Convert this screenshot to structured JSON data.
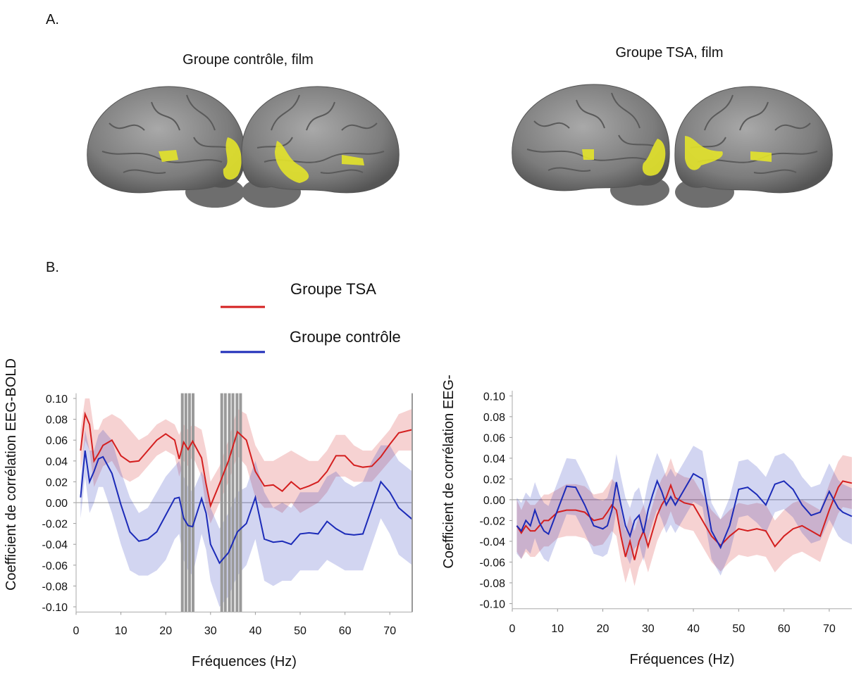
{
  "panel_a": {
    "label": "A.",
    "titles": [
      "Groupe contrôle, film",
      "Groupe TSA, film"
    ]
  },
  "panel_b": {
    "label": "B."
  },
  "chart_data": [
    {
      "type": "line",
      "xlabel": "Fréquences (Hz)",
      "ylabel": "Coefficient de corrélation EEG-BOLD",
      "frame": "box",
      "xlim": [
        0,
        75
      ],
      "xticks": [
        0,
        10,
        20,
        30,
        40,
        50,
        60,
        70
      ],
      "ylim": [
        -0.105,
        0.105
      ],
      "yticks": [
        {
          "value": 0.1,
          "label": "0.10"
        },
        0.08,
        0.06,
        0.04,
        0.02,
        {
          "value": 0,
          "label": "0.00"
        },
        -0.02,
        -0.04,
        -0.06,
        -0.08,
        {
          "value": -0.1,
          "label": "-0.10"
        }
      ],
      "reference_line": 0,
      "significant_x": [
        23.7,
        24.5,
        25.3,
        26.1,
        32.5,
        33.3,
        34.2,
        35,
        35.9,
        36.7
      ],
      "x": [
        1,
        2,
        3,
        4,
        5,
        6,
        8,
        10,
        12,
        14,
        16,
        18,
        20,
        22,
        23,
        24,
        25,
        26,
        28,
        29,
        30,
        32,
        34,
        36,
        38,
        40,
        42,
        44,
        46,
        48,
        50,
        52,
        54,
        56,
        58,
        60,
        62,
        64,
        66,
        68,
        70,
        72,
        75
      ],
      "series": [
        {
          "name": "Groupe TSA",
          "color": "#d41f1f",
          "values": [
            0.05,
            0.085,
            0.075,
            0.04,
            0.047,
            0.055,
            0.06,
            0.045,
            0.039,
            0.04,
            0.05,
            0.06,
            0.066,
            0.06,
            0.042,
            0.058,
            0.051,
            0.059,
            0.043,
            0.018,
            -0.003,
            0.018,
            0.04,
            0.068,
            0.06,
            0.03,
            0.016,
            0.017,
            0.011,
            0.02,
            0.013,
            0.016,
            0.02,
            0.03,
            0.045,
            0.045,
            0.036,
            0.034,
            0.035,
            0.044,
            0.056,
            0.067,
            0.07
          ],
          "upper": [
            0.07,
            0.1,
            0.1,
            0.07,
            0.07,
            0.08,
            0.085,
            0.08,
            0.07,
            0.06,
            0.065,
            0.075,
            0.08,
            0.075,
            0.065,
            0.075,
            0.07,
            0.075,
            0.07,
            0.05,
            0.02,
            0.035,
            0.06,
            0.09,
            0.085,
            0.055,
            0.04,
            0.04,
            0.045,
            0.05,
            0.045,
            0.04,
            0.04,
            0.05,
            0.065,
            0.065,
            0.055,
            0.05,
            0.05,
            0.06,
            0.07,
            0.085,
            0.09
          ],
          "lower": [
            0.03,
            0.06,
            0.05,
            0.015,
            0.025,
            0.035,
            0.04,
            0.025,
            0.02,
            0.025,
            0.035,
            0.045,
            0.05,
            0.045,
            0.025,
            0.04,
            0.035,
            0.045,
            0.025,
            -0.005,
            -0.02,
            0,
            0.02,
            0.045,
            0.035,
            0.005,
            -0.005,
            -0.005,
            -0.01,
            0,
            -0.01,
            -0.005,
            0,
            0.01,
            0.025,
            0.025,
            0.02,
            0.02,
            0.02,
            0.03,
            0.04,
            0.05,
            0.05
          ]
        },
        {
          "name": "Groupe contrôle",
          "color": "#1c2bb8",
          "values": [
            0.005,
            0.05,
            0.02,
            0.03,
            0.042,
            0.044,
            0.028,
            -0.002,
            -0.028,
            -0.037,
            -0.035,
            -0.028,
            -0.012,
            0.004,
            0.005,
            -0.015,
            -0.022,
            -0.023,
            0.004,
            -0.01,
            -0.04,
            -0.058,
            -0.048,
            -0.028,
            -0.02,
            0.005,
            -0.035,
            -0.038,
            -0.037,
            -0.04,
            -0.03,
            -0.029,
            -0.03,
            -0.018,
            -0.025,
            -0.03,
            -0.031,
            -0.03,
            -0.005,
            0.02,
            0.01,
            -0.005,
            -0.016
          ],
          "upper": [
            0.02,
            0.07,
            0.05,
            0.05,
            0.065,
            0.07,
            0.06,
            0.03,
            0.005,
            -0.01,
            -0.005,
            0.01,
            0.025,
            0.035,
            0.04,
            0.025,
            0.015,
            0.01,
            0.03,
            0.02,
            -0.005,
            -0.025,
            -0.01,
            0.01,
            0.015,
            0.04,
            0.01,
            -0.005,
            0,
            -0.005,
            0.01,
            0.01,
            0.01,
            0.025,
            0.03,
            0.02,
            0.015,
            0.02,
            0.04,
            0.055,
            0.055,
            0.04,
            0.03
          ],
          "lower": [
            -0.015,
            0.025,
            -0.01,
            0,
            0.015,
            0.015,
            -0.01,
            -0.04,
            -0.065,
            -0.07,
            -0.07,
            -0.065,
            -0.055,
            -0.035,
            -0.03,
            -0.055,
            -0.065,
            -0.07,
            -0.03,
            -0.045,
            -0.075,
            -0.1,
            -0.09,
            -0.07,
            -0.06,
            -0.035,
            -0.075,
            -0.08,
            -0.075,
            -0.075,
            -0.065,
            -0.065,
            -0.065,
            -0.055,
            -0.06,
            -0.065,
            -0.065,
            -0.065,
            -0.04,
            -0.015,
            -0.03,
            -0.05,
            -0.06
          ]
        }
      ]
    },
    {
      "type": "line",
      "xlabel": "Fréquences (Hz)",
      "ylabel": "Coefficient de corrélation EEG-",
      "frame": "open",
      "xlim": [
        0,
        75
      ],
      "xticks": [
        0,
        10,
        20,
        30,
        40,
        50,
        60,
        70
      ],
      "ylim": [
        -0.105,
        0.105
      ],
      "yticks": [
        {
          "value": 0.1,
          "label": "0.10"
        },
        0.08,
        0.06,
        0.04,
        0.02,
        {
          "value": 0,
          "label": "0.00"
        },
        -0.02,
        -0.04,
        -0.06,
        -0.08,
        {
          "value": -0.1,
          "label": "-0.10"
        }
      ],
      "reference_line": 0,
      "x": [
        1,
        2,
        3,
        4,
        5,
        6,
        7,
        8,
        10,
        12,
        14,
        16,
        18,
        20,
        21,
        22,
        23,
        24,
        25,
        26,
        27,
        28,
        29,
        30,
        31,
        32,
        33,
        34,
        35,
        36,
        38,
        40,
        42,
        44,
        46,
        48,
        50,
        52,
        54,
        56,
        58,
        60,
        62,
        64,
        66,
        68,
        70,
        72,
        73,
        75
      ],
      "series": [
        {
          "color": "#d41f1f",
          "values": [
            -0.025,
            -0.032,
            -0.025,
            -0.03,
            -0.03,
            -0.025,
            -0.02,
            -0.02,
            -0.012,
            -0.01,
            -0.01,
            -0.012,
            -0.02,
            -0.018,
            -0.012,
            -0.005,
            -0.01,
            -0.035,
            -0.055,
            -0.04,
            -0.058,
            -0.04,
            -0.03,
            -0.045,
            -0.03,
            -0.015,
            -0.005,
            0.002,
            0.014,
            0.002,
            -0.003,
            -0.005,
            -0.02,
            -0.035,
            -0.044,
            -0.035,
            -0.028,
            -0.03,
            -0.028,
            -0.03,
            -0.045,
            -0.035,
            -0.028,
            -0.025,
            -0.03,
            -0.035,
            -0.01,
            0.012,
            0.018,
            0.016
          ],
          "upper": [
            0,
            -0.01,
            0,
            -0.005,
            -0.005,
            0,
            0.005,
            0.005,
            0.01,
            0.015,
            0.015,
            0.013,
            0.005,
            0.007,
            0.013,
            0.02,
            0.015,
            -0.01,
            -0.03,
            -0.015,
            -0.03,
            -0.015,
            -0.005,
            -0.02,
            -0.005,
            0.01,
            0.02,
            0.027,
            0.04,
            0.027,
            0.022,
            0.02,
            0.005,
            -0.01,
            -0.019,
            -0.01,
            -0.003,
            -0.005,
            -0.003,
            -0.005,
            -0.02,
            -0.01,
            -0.003,
            0,
            -0.005,
            -0.01,
            0.015,
            0.037,
            0.043,
            0.041
          ],
          "lower": [
            -0.05,
            -0.057,
            -0.05,
            -0.055,
            -0.055,
            -0.05,
            -0.045,
            -0.045,
            -0.037,
            -0.035,
            -0.035,
            -0.037,
            -0.045,
            -0.043,
            -0.037,
            -0.03,
            -0.035,
            -0.06,
            -0.08,
            -0.065,
            -0.083,
            -0.065,
            -0.055,
            -0.07,
            -0.055,
            -0.04,
            -0.03,
            -0.023,
            -0.011,
            -0.023,
            -0.028,
            -0.03,
            -0.045,
            -0.06,
            -0.069,
            -0.06,
            -0.053,
            -0.055,
            -0.053,
            -0.055,
            -0.07,
            -0.06,
            -0.053,
            -0.05,
            -0.055,
            -0.06,
            -0.035,
            -0.013,
            -0.007,
            -0.009
          ]
        },
        {
          "color": "#1c2bb8",
          "values": [
            -0.025,
            -0.03,
            -0.02,
            -0.025,
            -0.01,
            -0.022,
            -0.03,
            -0.033,
            -0.01,
            0.013,
            0.012,
            -0.005,
            -0.025,
            -0.028,
            -0.025,
            -0.01,
            0.017,
            -0.005,
            -0.025,
            -0.035,
            -0.02,
            -0.015,
            -0.032,
            -0.01,
            0.005,
            0.018,
            0.008,
            -0.005,
            0.003,
            -0.005,
            0.01,
            0.025,
            0.02,
            -0.03,
            -0.046,
            -0.025,
            0.01,
            0.012,
            0.005,
            -0.005,
            0.015,
            0.018,
            0.01,
            -0.005,
            -0.015,
            -0.012,
            0.008,
            -0.008,
            -0.012,
            -0.016
          ],
          "upper": [
            0.002,
            -0.003,
            0.007,
            0.002,
            0.017,
            0.005,
            -0.003,
            -0.006,
            0.017,
            0.04,
            0.039,
            0.022,
            0.002,
            -0.001,
            0.002,
            0.017,
            0.044,
            0.022,
            0.002,
            -0.008,
            0.007,
            0.012,
            -0.005,
            0.017,
            0.032,
            0.045,
            0.035,
            0.022,
            0.03,
            0.022,
            0.037,
            0.052,
            0.047,
            -0.003,
            -0.019,
            0.002,
            0.037,
            0.039,
            0.032,
            0.022,
            0.042,
            0.045,
            0.037,
            0.022,
            0.012,
            0.015,
            0.035,
            0.019,
            0.015,
            0.011
          ],
          "lower": [
            -0.052,
            -0.057,
            -0.047,
            -0.052,
            -0.037,
            -0.049,
            -0.057,
            -0.06,
            -0.037,
            -0.014,
            -0.015,
            -0.032,
            -0.052,
            -0.055,
            -0.052,
            -0.037,
            -0.01,
            -0.032,
            -0.052,
            -0.062,
            -0.047,
            -0.042,
            -0.059,
            -0.037,
            -0.022,
            -0.009,
            -0.019,
            -0.032,
            -0.024,
            -0.032,
            -0.017,
            -0.002,
            -0.007,
            -0.057,
            -0.073,
            -0.052,
            -0.017,
            -0.015,
            -0.022,
            -0.032,
            -0.012,
            -0.009,
            -0.017,
            -0.032,
            -0.042,
            -0.039,
            -0.019,
            -0.035,
            -0.039,
            -0.043
          ]
        }
      ]
    }
  ]
}
